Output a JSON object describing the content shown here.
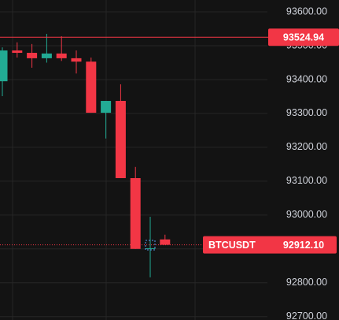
{
  "chart_data": {
    "type": "candlestick",
    "categories": [
      null,
      null,
      null,
      null,
      null,
      null,
      null,
      null,
      null,
      null,
      null,
      null
    ],
    "open": [
      93395,
      93486,
      93479,
      93463,
      93477,
      93463,
      93453,
      93302,
      93337,
      93109,
      92900,
      92928
    ],
    "high": [
      93495,
      93510,
      93505,
      93535,
      93528,
      93486,
      93465,
      93337,
      93386,
      93142,
      92995,
      92942
    ],
    "low": [
      93351,
      93465,
      93435,
      93450,
      93455,
      93418,
      93302,
      93226,
      93109,
      92900,
      92816,
      92912
    ],
    "close": [
      93486,
      93479,
      93463,
      93477,
      93463,
      93453,
      93302,
      93337,
      93109,
      92900,
      92902,
      92912.1
    ],
    "up_color": "#22ab94",
    "down_color": "#f23645",
    "ylim": [
      92690,
      93635
    ],
    "yticks": [
      {
        "value": 93600,
        "label": "93600.00"
      },
      {
        "value": 93500,
        "label": "93500.00"
      },
      {
        "value": 93400,
        "label": "93400.00"
      },
      {
        "value": 93300,
        "label": "93300.00"
      },
      {
        "value": 93200,
        "label": "93200.00"
      },
      {
        "value": 93100,
        "label": "93100.00"
      },
      {
        "value": 93000,
        "label": "93000.00"
      },
      {
        "value": 92900,
        "label": "92900.00"
      },
      {
        "value": 92800,
        "label": "92800.00"
      },
      {
        "value": 92700,
        "label": "92700.00"
      }
    ],
    "grid": true,
    "price_line": {
      "value": 93524.94,
      "label": "93524.94"
    },
    "last_price": {
      "symbol": "BTCUSDT",
      "value": 92912.1,
      "label": "92912.10"
    }
  }
}
